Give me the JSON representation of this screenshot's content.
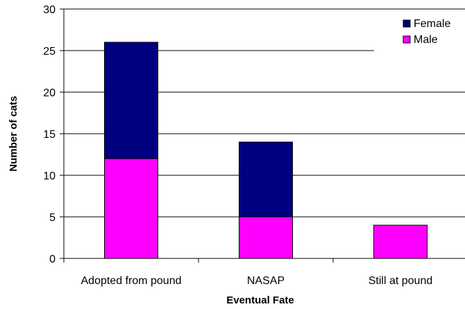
{
  "chart_data": {
    "type": "bar",
    "stacked": true,
    "title": "",
    "xlabel": "Eventual Fate",
    "ylabel": "Number of cats",
    "categories": [
      "Adopted from pound",
      "NASAP",
      "Still at pound"
    ],
    "series": [
      {
        "name": "Male",
        "values": [
          12,
          5,
          4
        ],
        "color": "#ff00ff"
      },
      {
        "name": "Female",
        "values": [
          14,
          9,
          0
        ],
        "color": "#000080"
      }
    ],
    "ylim": [
      0,
      30
    ],
    "yticks": [
      0,
      5,
      10,
      15,
      20,
      25,
      30
    ],
    "legend_order": [
      "Female",
      "Male"
    ],
    "legend_position": "top-right",
    "grid": "horizontal"
  }
}
